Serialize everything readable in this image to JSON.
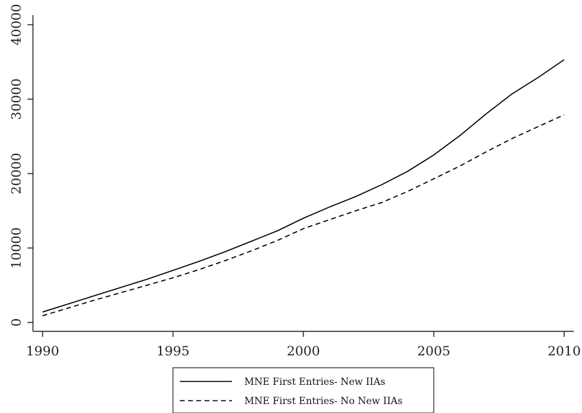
{
  "chart_data": {
    "type": "line",
    "title": "",
    "xlabel": "",
    "ylabel": "",
    "x": [
      1990,
      1991,
      1992,
      1993,
      1994,
      1995,
      1996,
      1997,
      1998,
      1999,
      2000,
      2001,
      2002,
      2003,
      2004,
      2005,
      2006,
      2007,
      2008,
      2009,
      2010
    ],
    "xlim": [
      1990,
      2010
    ],
    "ylim": [
      0,
      40000
    ],
    "x_ticks": [
      "1990",
      "1995",
      "2000",
      "2005",
      "2010"
    ],
    "y_ticks": [
      "0",
      "10000",
      "20000",
      "30000",
      "40000"
    ],
    "grid": false,
    "legend_position": "bottom",
    "series": [
      {
        "name": "MNE First Entries- New IIAs",
        "style": "solid",
        "color": "#000000",
        "values": [
          1400,
          2500,
          3600,
          4700,
          5800,
          7000,
          8200,
          9500,
          10900,
          12300,
          14000,
          15500,
          16900,
          18500,
          20300,
          22500,
          25100,
          28000,
          30700,
          32900,
          35300
        ]
      },
      {
        "name": "MNE First Entries- No New IIAs",
        "style": "dashed",
        "color": "#000000",
        "values": [
          900,
          1950,
          3000,
          4000,
          5000,
          6000,
          7100,
          8300,
          9600,
          11000,
          12600,
          13800,
          15000,
          16100,
          17600,
          19300,
          21000,
          22900,
          24700,
          26300,
          27900
        ]
      }
    ]
  }
}
